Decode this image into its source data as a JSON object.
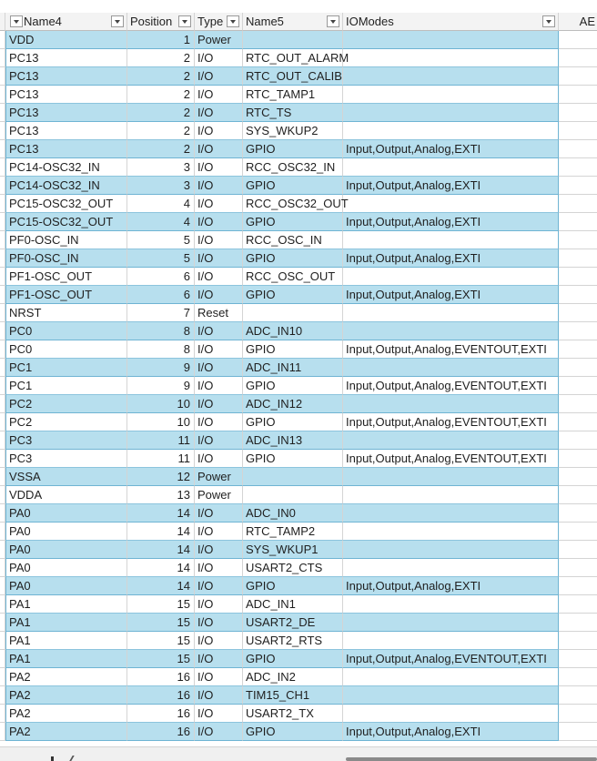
{
  "headers": {
    "name4": "Name4",
    "position": "Position",
    "type": "Type",
    "name5": "Name5",
    "iomodes": "IOModes",
    "next_col": "AE"
  },
  "rows": [
    {
      "name4": "VDD",
      "position": "1",
      "type": "Power",
      "name5": "",
      "iomodes": ""
    },
    {
      "name4": "PC13",
      "position": "2",
      "type": "I/O",
      "name5": "RTC_OUT_ALARM",
      "iomodes": ""
    },
    {
      "name4": "PC13",
      "position": "2",
      "type": "I/O",
      "name5": "RTC_OUT_CALIB",
      "iomodes": ""
    },
    {
      "name4": "PC13",
      "position": "2",
      "type": "I/O",
      "name5": "RTC_TAMP1",
      "iomodes": ""
    },
    {
      "name4": "PC13",
      "position": "2",
      "type": "I/O",
      "name5": "RTC_TS",
      "iomodes": ""
    },
    {
      "name4": "PC13",
      "position": "2",
      "type": "I/O",
      "name5": "SYS_WKUP2",
      "iomodes": ""
    },
    {
      "name4": "PC13",
      "position": "2",
      "type": "I/O",
      "name5": "GPIO",
      "iomodes": "Input,Output,Analog,EXTI"
    },
    {
      "name4": "PC14-OSC32_IN",
      "position": "3",
      "type": "I/O",
      "name5": "RCC_OSC32_IN",
      "iomodes": ""
    },
    {
      "name4": "PC14-OSC32_IN",
      "position": "3",
      "type": "I/O",
      "name5": "GPIO",
      "iomodes": "Input,Output,Analog,EXTI"
    },
    {
      "name4": "PC15-OSC32_OUT",
      "position": "4",
      "type": "I/O",
      "name5": "RCC_OSC32_OUT",
      "iomodes": ""
    },
    {
      "name4": "PC15-OSC32_OUT",
      "position": "4",
      "type": "I/O",
      "name5": "GPIO",
      "iomodes": "Input,Output,Analog,EXTI"
    },
    {
      "name4": "PF0-OSC_IN",
      "position": "5",
      "type": "I/O",
      "name5": "RCC_OSC_IN",
      "iomodes": ""
    },
    {
      "name4": "PF0-OSC_IN",
      "position": "5",
      "type": "I/O",
      "name5": "GPIO",
      "iomodes": "Input,Output,Analog,EXTI"
    },
    {
      "name4": "PF1-OSC_OUT",
      "position": "6",
      "type": "I/O",
      "name5": "RCC_OSC_OUT",
      "iomodes": ""
    },
    {
      "name4": "PF1-OSC_OUT",
      "position": "6",
      "type": "I/O",
      "name5": "GPIO",
      "iomodes": "Input,Output,Analog,EXTI"
    },
    {
      "name4": "NRST",
      "position": "7",
      "type": "Reset",
      "name5": "",
      "iomodes": ""
    },
    {
      "name4": "PC0",
      "position": "8",
      "type": "I/O",
      "name5": "ADC_IN10",
      "iomodes": ""
    },
    {
      "name4": "PC0",
      "position": "8",
      "type": "I/O",
      "name5": "GPIO",
      "iomodes": "Input,Output,Analog,EVENTOUT,EXTI"
    },
    {
      "name4": "PC1",
      "position": "9",
      "type": "I/O",
      "name5": "ADC_IN11",
      "iomodes": ""
    },
    {
      "name4": "PC1",
      "position": "9",
      "type": "I/O",
      "name5": "GPIO",
      "iomodes": "Input,Output,Analog,EVENTOUT,EXTI"
    },
    {
      "name4": "PC2",
      "position": "10",
      "type": "I/O",
      "name5": "ADC_IN12",
      "iomodes": ""
    },
    {
      "name4": "PC2",
      "position": "10",
      "type": "I/O",
      "name5": "GPIO",
      "iomodes": "Input,Output,Analog,EVENTOUT,EXTI"
    },
    {
      "name4": "PC3",
      "position": "11",
      "type": "I/O",
      "name5": "ADC_IN13",
      "iomodes": ""
    },
    {
      "name4": "PC3",
      "position": "11",
      "type": "I/O",
      "name5": "GPIO",
      "iomodes": "Input,Output,Analog,EVENTOUT,EXTI"
    },
    {
      "name4": "VSSA",
      "position": "12",
      "type": "Power",
      "name5": "",
      "iomodes": ""
    },
    {
      "name4": "VDDA",
      "position": "13",
      "type": "Power",
      "name5": "",
      "iomodes": ""
    },
    {
      "name4": "PA0",
      "position": "14",
      "type": "I/O",
      "name5": "ADC_IN0",
      "iomodes": ""
    },
    {
      "name4": "PA0",
      "position": "14",
      "type": "I/O",
      "name5": "RTC_TAMP2",
      "iomodes": ""
    },
    {
      "name4": "PA0",
      "position": "14",
      "type": "I/O",
      "name5": "SYS_WKUP1",
      "iomodes": ""
    },
    {
      "name4": "PA0",
      "position": "14",
      "type": "I/O",
      "name5": "USART2_CTS",
      "iomodes": ""
    },
    {
      "name4": "PA0",
      "position": "14",
      "type": "I/O",
      "name5": "GPIO",
      "iomodes": "Input,Output,Analog,EXTI"
    },
    {
      "name4": "PA1",
      "position": "15",
      "type": "I/O",
      "name5": "ADC_IN1",
      "iomodes": ""
    },
    {
      "name4": "PA1",
      "position": "15",
      "type": "I/O",
      "name5": "USART2_DE",
      "iomodes": ""
    },
    {
      "name4": "PA1",
      "position": "15",
      "type": "I/O",
      "name5": "USART2_RTS",
      "iomodes": ""
    },
    {
      "name4": "PA1",
      "position": "15",
      "type": "I/O",
      "name5": "GPIO",
      "iomodes": "Input,Output,Analog,EVENTOUT,EXTI"
    },
    {
      "name4": "PA2",
      "position": "16",
      "type": "I/O",
      "name5": "ADC_IN2",
      "iomodes": ""
    },
    {
      "name4": "PA2",
      "position": "16",
      "type": "I/O",
      "name5": "TIM15_CH1",
      "iomodes": ""
    },
    {
      "name4": "PA2",
      "position": "16",
      "type": "I/O",
      "name5": "USART2_TX",
      "iomodes": ""
    },
    {
      "name4": "PA2",
      "position": "16",
      "type": "I/O",
      "name5": "GPIO",
      "iomodes": "Input,Output,Analog,EXTI"
    }
  ],
  "colors": {
    "band": "#b7dfee",
    "header_bg": "#f3f3f3",
    "grid_line": "#d4d4d4"
  }
}
